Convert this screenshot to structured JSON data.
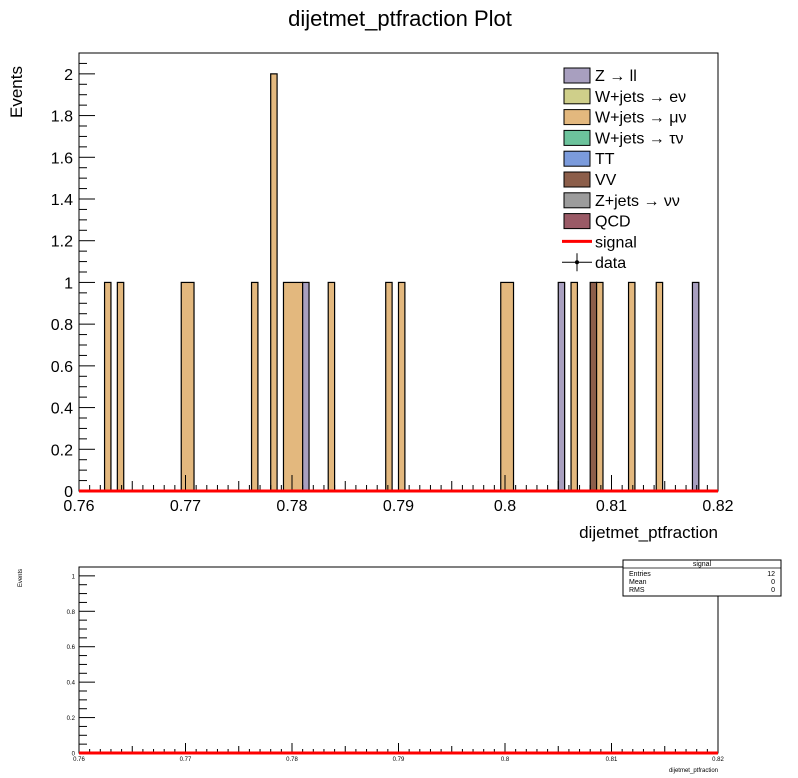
{
  "chart_data": [
    {
      "type": "bar",
      "title": "dijetmet_ptfraction Plot",
      "xlabel": "dijetmet_ptfraction",
      "ylabel": "Events",
      "xlim": [
        0.76,
        0.82
      ],
      "ylim": [
        0,
        2.1
      ],
      "x_ticks": [
        "0.76",
        "0.77",
        "0.78",
        "0.79",
        "0.8",
        "0.81",
        "0.82"
      ],
      "y_ticks": [
        "0",
        "0.2",
        "0.4",
        "0.6",
        "0.8",
        "1",
        "1.2",
        "1.4",
        "1.6",
        "1.8",
        "2"
      ],
      "legend_position": "top-right",
      "legend": [
        {
          "label": "Z → ll",
          "color": "#a89fbf",
          "kind": "box"
        },
        {
          "label": "W+jets → eν",
          "color": "#cfcf8a",
          "kind": "box"
        },
        {
          "label": "W+jets → μν",
          "color": "#e3b87e",
          "kind": "box"
        },
        {
          "label": "W+jets → τν",
          "color": "#6cc39c",
          "kind": "box"
        },
        {
          "label": "TT",
          "color": "#7b9bdc",
          "kind": "box"
        },
        {
          "label": "VV",
          "color": "#8c5e4a",
          "kind": "box"
        },
        {
          "label": "Z+jets → νν",
          "color": "#9c9c9c",
          "kind": "box"
        },
        {
          "label": "QCD",
          "color": "#9a5a66",
          "kind": "box"
        },
        {
          "label": "signal",
          "color": "#ff0000",
          "kind": "line"
        },
        {
          "label": "data",
          "color": "#000000",
          "kind": "marker"
        }
      ],
      "bin_width": 0.0006,
      "bars": [
        {
          "x0": 0.7624,
          "x1": 0.763,
          "value": 1,
          "color": "#e3b87e"
        },
        {
          "x0": 0.7636,
          "x1": 0.7642,
          "value": 1,
          "color": "#e3b87e"
        },
        {
          "x0": 0.7696,
          "x1": 0.7708,
          "value": 1,
          "color": "#e3b87e"
        },
        {
          "x0": 0.7762,
          "x1": 0.7768,
          "value": 1,
          "color": "#e3b87e"
        },
        {
          "x0": 0.778,
          "x1": 0.7786,
          "value": 2,
          "color": "#e3b87e"
        },
        {
          "x0": 0.7792,
          "x1": 0.781,
          "value": 1,
          "color": "#e3b87e"
        },
        {
          "x0": 0.781,
          "x1": 0.7816,
          "value": 1,
          "color": "#a89fbf"
        },
        {
          "x0": 0.7834,
          "x1": 0.784,
          "value": 1,
          "color": "#e3b87e"
        },
        {
          "x0": 0.7888,
          "x1": 0.7894,
          "value": 1,
          "color": "#e3b87e"
        },
        {
          "x0": 0.79,
          "x1": 0.7906,
          "value": 1,
          "color": "#e3b87e"
        },
        {
          "x0": 0.7996,
          "x1": 0.8008,
          "value": 1,
          "color": "#e3b87e"
        },
        {
          "x0": 0.805,
          "x1": 0.8056,
          "value": 1,
          "color": "#a89fbf"
        },
        {
          "x0": 0.8062,
          "x1": 0.8068,
          "value": 1,
          "color": "#e3b87e"
        },
        {
          "x0": 0.808,
          "x1": 0.8086,
          "value": 1,
          "color": "#8c5e4a"
        },
        {
          "x0": 0.8086,
          "x1": 0.8092,
          "value": 1,
          "color": "#e3b87e"
        },
        {
          "x0": 0.8116,
          "x1": 0.8122,
          "value": 1,
          "color": "#e3b87e"
        },
        {
          "x0": 0.8142,
          "x1": 0.8148,
          "value": 1,
          "color": "#e3b87e"
        },
        {
          "x0": 0.8176,
          "x1": 0.8182,
          "value": 1,
          "color": "#a89fbf"
        }
      ],
      "signal_value": 0
    },
    {
      "type": "line",
      "title": "",
      "xlabel": "dijetmet_ptfraction",
      "ylabel": "Events",
      "xlim": [
        0.76,
        0.82
      ],
      "ylim": [
        0,
        1.05
      ],
      "x_ticks": [
        "0.76",
        "0.77",
        "0.78",
        "0.79",
        "0.8",
        "0.81",
        "0.82"
      ],
      "y_ticks": [
        "0",
        "0.2",
        "0.4",
        "0.6",
        "0.8",
        "1"
      ],
      "series": [
        {
          "name": "signal",
          "color": "#ff0000",
          "x": [
            0.76,
            0.82
          ],
          "y": [
            0,
            0
          ]
        }
      ],
      "stats_box": {
        "title": "signal",
        "rows": [
          {
            "label": "Entries",
            "value": "12"
          },
          {
            "label": "Mean",
            "value": "0"
          },
          {
            "label": "RMS",
            "value": "0"
          }
        ]
      }
    }
  ]
}
